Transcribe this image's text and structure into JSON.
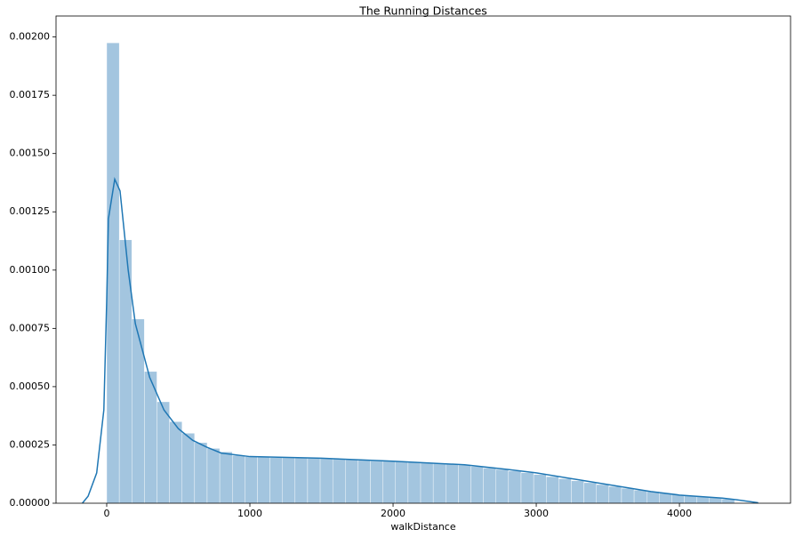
{
  "chart_data": {
    "type": "histogram",
    "title": "The Running Distances",
    "xlabel": "walkDistance",
    "color": "#a3c5df",
    "bins": [
      0,
      87.7,
      175.4,
      263.1,
      350.8,
      438.5,
      526.2,
      613.9,
      701.6,
      789.3,
      877,
      964.7,
      1052.4,
      1140.1,
      1227.8,
      1315.5,
      1403.2,
      1490.9,
      1578.6,
      1666.3,
      1754,
      1841.7,
      1929.4,
      2017.1,
      2104.8,
      2192.5,
      2280.2,
      2367.9,
      2455.6,
      2543.3,
      2631,
      2718.7,
      2806.4,
      2894.1,
      2981.8,
      3069.5,
      3157.2,
      3244.9,
      3332.6,
      3420.3,
      3508,
      3595.7,
      3683.4,
      3771.1,
      3858.8,
      3946.5,
      4034.2,
      4121.9,
      4209.6,
      4297.3,
      4385
    ],
    "values": [
      0.001975,
      0.00113,
      0.00079,
      0.000565,
      0.000435,
      0.00035,
      0.0003,
      0.00026,
      0.000235,
      0.00022,
      0.000205,
      0.0002,
      0.000198,
      0.000196,
      0.000195,
      0.000194,
      0.000193,
      0.000192,
      0.00019,
      0.000187,
      0.000184,
      0.000181,
      0.00018,
      0.000178,
      0.000176,
      0.000174,
      0.000171,
      0.000168,
      0.000164,
      0.000158,
      0.000151,
      0.000145,
      0.000138,
      0.000131,
      0.000123,
      0.000114,
      0.000105,
      9.6e-05,
      8.8e-05,
      8e-05,
      7.2e-05,
      6.4e-05,
      5.6e-05,
      5e-05,
      4.3e-05,
      3.7e-05,
      3.2e-05,
      2.8e-05,
      2.4e-05,
      1.8e-05
    ],
    "kde": {
      "color": "#1f77b4",
      "x": [
        -170,
        -130,
        -70,
        -20,
        0,
        12,
        56,
        93,
        150,
        200,
        300,
        400,
        500,
        600,
        700,
        800,
        1000,
        1500,
        2000,
        2500,
        2800,
        3000,
        3300,
        3500,
        3800,
        4000,
        4300,
        4400,
        4550
      ],
      "values": [
        0,
        3e-05,
        0.00013,
        0.0004,
        0.00087,
        0.00122,
        0.00139,
        0.00134,
        0.001,
        0.00077,
        0.00054,
        0.0004,
        0.00032,
        0.00027,
        0.00024,
        0.000215,
        0.0002,
        0.000193,
        0.00018,
        0.000165,
        0.000145,
        0.00013,
        0.0001,
        8e-05,
        5e-05,
        3.5e-05,
        2.2e-05,
        1.5e-05,
        2e-06
      ]
    },
    "xlim": [
      -354,
      4776
    ],
    "ylim": [
      0,
      0.00209
    ],
    "xticks": [
      0,
      1000,
      2000,
      3000,
      4000
    ],
    "yticks": [
      {
        "value": 0,
        "label": "0.00000"
      },
      {
        "value": 0.00025,
        "label": "0.00025"
      },
      {
        "value": 0.0005,
        "label": "0.00050"
      },
      {
        "value": 0.00075,
        "label": "0.00075"
      },
      {
        "value": 0.001,
        "label": "0.00100"
      },
      {
        "value": 0.00125,
        "label": "0.00125"
      },
      {
        "value": 0.0015,
        "label": "0.00150"
      },
      {
        "value": 0.00175,
        "label": "0.00175"
      },
      {
        "value": 0.002,
        "label": "0.00200"
      }
    ]
  }
}
